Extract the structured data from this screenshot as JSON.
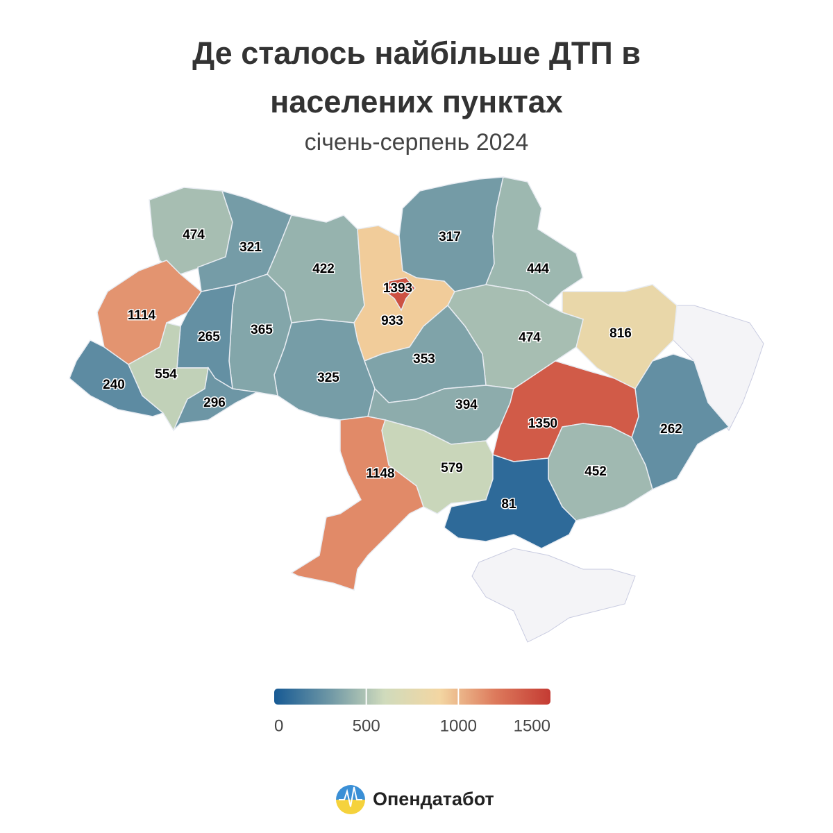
{
  "title": "Де сталось найбільше ДТП в населених пунктах",
  "subtitle": "січень-серпень 2024",
  "map": {
    "type": "choropleth",
    "values": [
      474,
      321,
      422,
      933,
      1393,
      317,
      444,
      816,
      262,
      474,
      353,
      325,
      365,
      265,
      1114,
      240,
      554,
      296,
      394,
      1350,
      452,
      579,
      81,
      1148
    ],
    "colors": [
      "#175a94",
      "#6e97a5",
      "#d0dbbc",
      "#f3d6a2",
      "#dd7a5c",
      "#c43b33"
    ],
    "colorbar": {
      "lim": [
        0,
        1500
      ],
      "ticks": [
        0,
        500,
        1000,
        1500
      ]
    }
  },
  "brand": "Опендатабот"
}
